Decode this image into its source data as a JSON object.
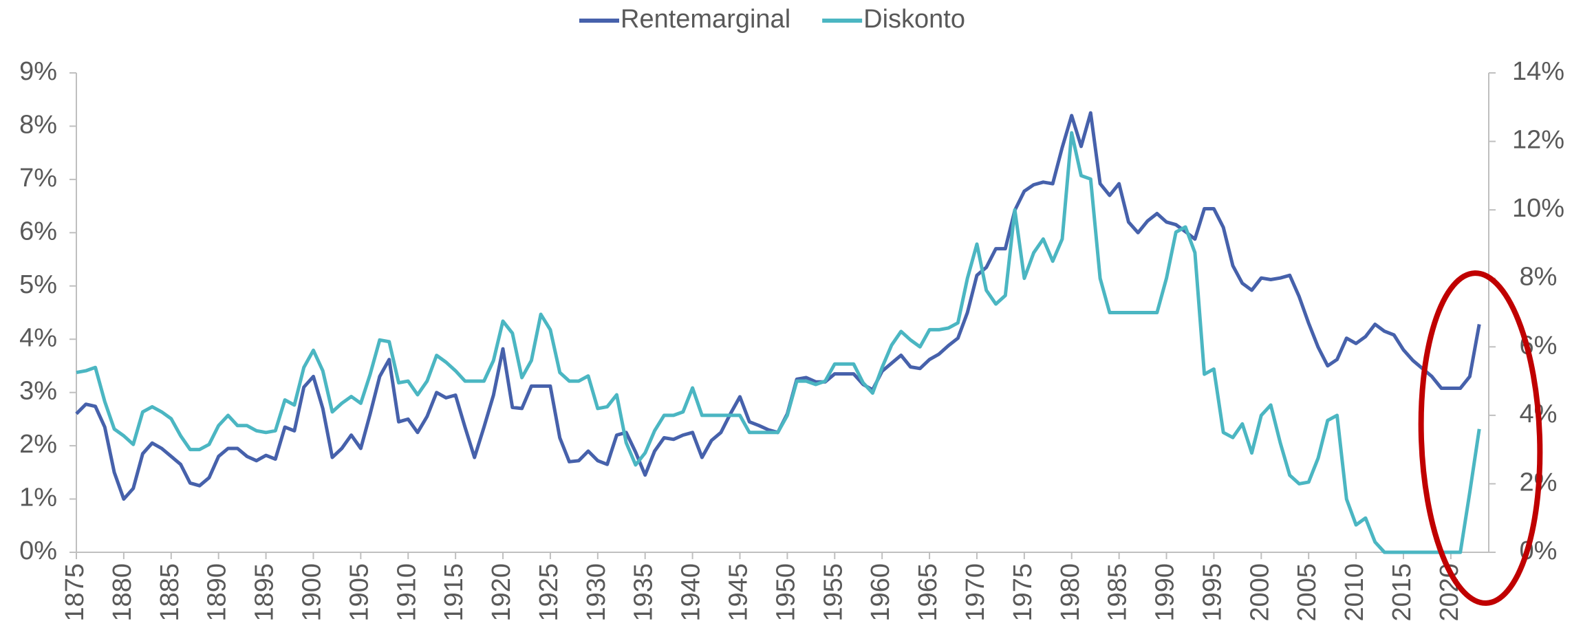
{
  "chart_data": {
    "type": "line",
    "x": [
      1875,
      1876,
      1877,
      1878,
      1879,
      1880,
      1881,
      1882,
      1883,
      1884,
      1885,
      1886,
      1887,
      1888,
      1889,
      1890,
      1891,
      1892,
      1893,
      1894,
      1895,
      1896,
      1897,
      1898,
      1899,
      1900,
      1901,
      1902,
      1903,
      1904,
      1905,
      1906,
      1907,
      1908,
      1909,
      1910,
      1911,
      1912,
      1913,
      1914,
      1915,
      1916,
      1917,
      1918,
      1919,
      1920,
      1921,
      1922,
      1923,
      1924,
      1925,
      1926,
      1927,
      1928,
      1929,
      1930,
      1931,
      1932,
      1933,
      1934,
      1935,
      1936,
      1937,
      1938,
      1939,
      1940,
      1941,
      1942,
      1943,
      1944,
      1945,
      1946,
      1947,
      1948,
      1949,
      1950,
      1951,
      1952,
      1953,
      1954,
      1955,
      1956,
      1957,
      1958,
      1959,
      1960,
      1961,
      1962,
      1963,
      1964,
      1965,
      1966,
      1967,
      1968,
      1969,
      1970,
      1971,
      1972,
      1973,
      1974,
      1975,
      1976,
      1977,
      1978,
      1979,
      1980,
      1981,
      1982,
      1983,
      1984,
      1985,
      1986,
      1987,
      1988,
      1989,
      1990,
      1991,
      1992,
      1993,
      1994,
      1995,
      1996,
      1997,
      1998,
      1999,
      2000,
      2001,
      2002,
      2003,
      2004,
      2005,
      2006,
      2007,
      2008,
      2009,
      2010,
      2011,
      2012,
      2013,
      2014,
      2015,
      2016,
      2017,
      2018,
      2019,
      2020,
      2021,
      2022,
      2023
    ],
    "series": [
      {
        "name": "Rentemarginal",
        "color": "#4661ab",
        "axis": "y",
        "values": [
          2.6,
          2.78,
          2.74,
          2.35,
          1.5,
          1.0,
          1.2,
          1.85,
          2.05,
          1.95,
          1.8,
          1.65,
          1.3,
          1.25,
          1.4,
          1.8,
          1.95,
          1.95,
          1.8,
          1.72,
          1.82,
          1.75,
          2.35,
          2.28,
          3.1,
          3.3,
          2.7,
          1.78,
          1.95,
          2.2,
          1.95,
          2.6,
          3.3,
          3.62,
          2.45,
          2.5,
          2.25,
          2.55,
          3.0,
          2.9,
          2.95,
          2.35,
          1.78,
          2.35,
          2.95,
          3.82,
          2.72,
          2.7,
          3.12,
          3.12,
          3.12,
          2.15,
          1.7,
          1.72,
          1.9,
          1.72,
          1.65,
          2.2,
          2.25,
          1.88,
          1.45,
          1.9,
          2.15,
          2.12,
          2.2,
          2.25,
          1.78,
          2.1,
          2.25,
          2.6,
          2.92,
          2.45,
          2.38,
          2.3,
          2.25,
          2.6,
          3.25,
          3.28,
          3.2,
          3.2,
          3.35,
          3.35,
          3.35,
          3.15,
          3.05,
          3.4,
          3.55,
          3.7,
          3.48,
          3.45,
          3.62,
          3.72,
          3.88,
          4.02,
          4.5,
          5.2,
          5.35,
          5.7,
          5.7,
          6.42,
          6.78,
          6.9,
          6.95,
          6.92,
          7.6,
          8.2,
          7.62,
          8.25,
          6.92,
          6.7,
          6.92,
          6.2,
          6.0,
          6.22,
          6.36,
          6.2,
          6.15,
          6.02,
          5.88,
          6.45,
          6.45,
          6.1,
          5.38,
          5.05,
          4.92,
          5.15,
          5.12,
          5.15,
          5.2,
          4.8,
          4.3,
          3.85,
          3.5,
          3.62,
          4.02,
          3.92,
          4.05,
          4.28,
          4.15,
          4.08,
          3.8,
          3.6,
          3.45,
          3.3,
          3.08,
          3.08,
          3.08,
          3.3,
          4.28
        ]
      },
      {
        "name": "Diskonto",
        "color": "#4bb6c2",
        "axis": "y2",
        "values": [
          5.25,
          5.3,
          5.4,
          4.4,
          3.6,
          3.4,
          3.15,
          4.1,
          4.25,
          4.1,
          3.9,
          3.4,
          3.0,
          3.0,
          3.15,
          3.7,
          4.0,
          3.7,
          3.7,
          3.55,
          3.5,
          3.55,
          4.45,
          4.3,
          5.4,
          5.9,
          5.3,
          4.1,
          4.35,
          4.55,
          4.35,
          5.2,
          6.2,
          6.15,
          4.95,
          5.0,
          4.6,
          5.0,
          5.75,
          5.55,
          5.3,
          5.0,
          5.0,
          5.0,
          5.6,
          6.75,
          6.4,
          5.1,
          5.6,
          6.95,
          6.5,
          5.25,
          5.0,
          5.0,
          5.15,
          4.2,
          4.25,
          4.6,
          3.2,
          2.55,
          2.9,
          3.55,
          4.0,
          4.0,
          4.1,
          4.8,
          4.0,
          4.0,
          4.0,
          4.0,
          4.0,
          3.5,
          3.5,
          3.5,
          3.5,
          4.0,
          5.0,
          5.0,
          4.9,
          5.0,
          5.5,
          5.5,
          5.5,
          4.95,
          4.65,
          5.4,
          6.05,
          6.45,
          6.2,
          6.0,
          6.5,
          6.5,
          6.55,
          6.7,
          8.0,
          9.0,
          7.65,
          7.25,
          7.5,
          10.0,
          8.0,
          8.75,
          9.15,
          8.5,
          9.15,
          12.25,
          11.0,
          10.9,
          8.0,
          7.0,
          7.0,
          7.0,
          7.0,
          7.0,
          7.0,
          8.0,
          9.35,
          9.5,
          8.75,
          5.2,
          5.35,
          3.5,
          3.35,
          3.75,
          2.9,
          4.0,
          4.3,
          3.2,
          2.25,
          2.0,
          2.05,
          2.75,
          3.85,
          4.0,
          1.55,
          0.8,
          1.0,
          0.3,
          0,
          0,
          0,
          0,
          0,
          0,
          0,
          0,
          0,
          1.75,
          3.6
        ]
      }
    ],
    "xlim": [
      1875,
      2024
    ],
    "xticks": [
      1875,
      1880,
      1885,
      1890,
      1895,
      1900,
      1905,
      1910,
      1915,
      1920,
      1925,
      1930,
      1935,
      1940,
      1945,
      1950,
      1955,
      1960,
      1965,
      1970,
      1975,
      1980,
      1985,
      1990,
      1995,
      2000,
      2005,
      2010,
      2015,
      2020
    ],
    "ylim": [
      0,
      9
    ],
    "yticks": [
      {
        "value": 0,
        "label": "0%"
      },
      {
        "value": 1,
        "label": "1%"
      },
      {
        "value": 2,
        "label": "2%"
      },
      {
        "value": 3,
        "label": "3%"
      },
      {
        "value": 4,
        "label": "4%"
      },
      {
        "value": 5,
        "label": "5%"
      },
      {
        "value": 6,
        "label": "6%"
      },
      {
        "value": 7,
        "label": "7%"
      },
      {
        "value": 8,
        "label": "8%"
      },
      {
        "value": 9,
        "label": "9%"
      }
    ],
    "y2lim": [
      0,
      14
    ],
    "y2ticks": [
      {
        "value": 0,
        "label": "0%"
      },
      {
        "value": 2,
        "label": "2%"
      },
      {
        "value": 4,
        "label": "4%"
      },
      {
        "value": 6,
        "label": "6%"
      },
      {
        "value": 8,
        "label": "8%"
      },
      {
        "value": 10,
        "label": "10%"
      },
      {
        "value": 12,
        "label": "12%"
      },
      {
        "value": 14,
        "label": "14%"
      }
    ],
    "legend": "top"
  }
}
